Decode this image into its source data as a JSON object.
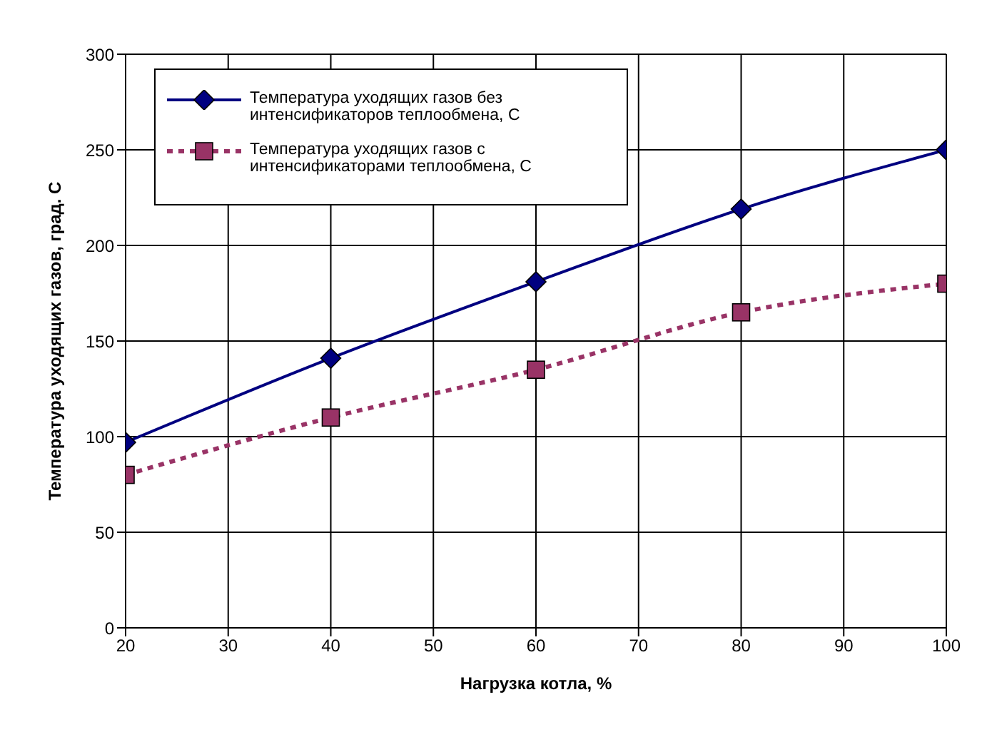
{
  "chart_data": {
    "type": "line",
    "xlabel": "Нагрузка котла, %",
    "ylabel": "Температура уходящих газов, град. С",
    "x": [
      20,
      40,
      60,
      80,
      100
    ],
    "series": [
      {
        "name": "Температура уходящих газов без интенсификаторов теплообмена, С",
        "color": "#000080",
        "values": [
          97,
          141,
          181,
          219,
          250
        ],
        "marker": "diamond",
        "line_style": "solid"
      },
      {
        "name": "Температура уходящих газов с интенсификаторами теплообмена, С",
        "color": "#993366",
        "values": [
          80,
          110,
          135,
          165,
          180
        ],
        "marker": "square",
        "line_style": "dotted"
      }
    ],
    "xlim": [
      20,
      100
    ],
    "xticks": [
      20,
      30,
      40,
      50,
      60,
      70,
      80,
      90,
      100
    ],
    "ylim": [
      0,
      300
    ],
    "yticks": [
      0,
      50,
      100,
      150,
      200,
      250,
      300
    ],
    "grid": true,
    "legend": "top left"
  }
}
